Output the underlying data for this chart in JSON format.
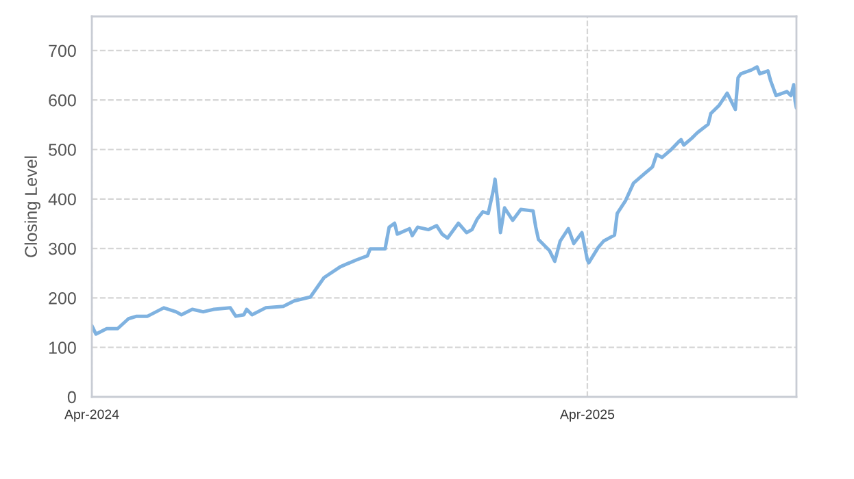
{
  "chart_data": {
    "type": "line",
    "ylabel": "Closing Level",
    "x": [
      "2024-04-01",
      "2024-04-04",
      "2024-04-12",
      "2024-04-20",
      "2024-04-28",
      "2024-05-04",
      "2024-05-12",
      "2024-05-24",
      "2024-06-02",
      "2024-06-06",
      "2024-06-14",
      "2024-06-22",
      "2024-06-30",
      "2024-07-12",
      "2024-07-16",
      "2024-07-22",
      "2024-07-24",
      "2024-07-28",
      "2024-08-07",
      "2024-08-20",
      "2024-08-28",
      "2024-09-09",
      "2024-09-19",
      "2024-10-01",
      "2024-10-13",
      "2024-10-21",
      "2024-10-23",
      "2024-11-03",
      "2024-11-06",
      "2024-11-10",
      "2024-11-12",
      "2024-11-21",
      "2024-11-23",
      "2024-11-27",
      "2024-12-05",
      "2024-12-11",
      "2024-12-15",
      "2024-12-19",
      "2024-12-27",
      "2025-01-02",
      "2025-01-06",
      "2025-01-10",
      "2025-01-14",
      "2025-01-18",
      "2025-01-22",
      "2025-01-23",
      "2025-01-25",
      "2025-01-27",
      "2025-01-30",
      "2025-02-05",
      "2025-02-11",
      "2025-02-20",
      "2025-02-22",
      "2025-02-24",
      "2025-03-04",
      "2025-03-08",
      "2025-03-12",
      "2025-03-18",
      "2025-03-22",
      "2025-03-28",
      "2025-04-01",
      "2025-04-02",
      "2025-04-09",
      "2025-04-13",
      "2025-04-21",
      "2025-04-23",
      "2025-04-29",
      "2025-05-05",
      "2025-05-13",
      "2025-05-19",
      "2025-05-22",
      "2025-05-26",
      "2025-06-01",
      "2025-06-07",
      "2025-06-09",
      "2025-06-11",
      "2025-06-17",
      "2025-06-21",
      "2025-06-29",
      "2025-07-01",
      "2025-07-07",
      "2025-07-13",
      "2025-07-19",
      "2025-07-21",
      "2025-07-23",
      "2025-07-31",
      "2025-08-04",
      "2025-08-06",
      "2025-08-12",
      "2025-08-14",
      "2025-08-18",
      "2025-08-26",
      "2025-08-29",
      "2025-08-31",
      "2025-09-01",
      "2025-09-02"
    ],
    "series": [
      {
        "color": "#7fb2e0",
        "values": [
          144,
          127,
          138,
          138,
          158,
          163,
          163,
          180,
          172,
          166,
          177,
          172,
          177,
          180,
          163,
          166,
          177,
          166,
          180,
          183,
          194,
          202,
          241,
          263,
          277,
          285,
          299,
          299,
          343,
          351,
          329,
          340,
          326,
          343,
          338,
          346,
          329,
          321,
          351,
          332,
          338,
          360,
          374,
          371,
          421,
          440,
          393,
          332,
          382,
          357,
          379,
          376,
          343,
          318,
          296,
          274,
          315,
          340,
          310,
          332,
          277,
          271,
          302,
          315,
          327,
          371,
          396,
          432,
          451,
          465,
          490,
          484,
          498,
          515,
          520,
          509,
          523,
          534,
          551,
          573,
          589,
          614,
          581,
          645,
          653,
          661,
          667,
          653,
          659,
          639,
          609,
          617,
          609,
          631,
          598,
          584
        ]
      }
    ],
    "xlim": [
      "2024-04-01",
      "2025-09-02"
    ],
    "xticks": [
      {
        "value": "2024-04-01",
        "label": "Apr-2024"
      },
      {
        "value": "2025-04-01",
        "label": "Apr-2025"
      }
    ],
    "ylim": [
      0,
      769
    ],
    "yticks": [
      0,
      100,
      200,
      300,
      400,
      500,
      600,
      700
    ],
    "grid": true,
    "legend": false,
    "marker": "none",
    "line_style": "solid"
  }
}
